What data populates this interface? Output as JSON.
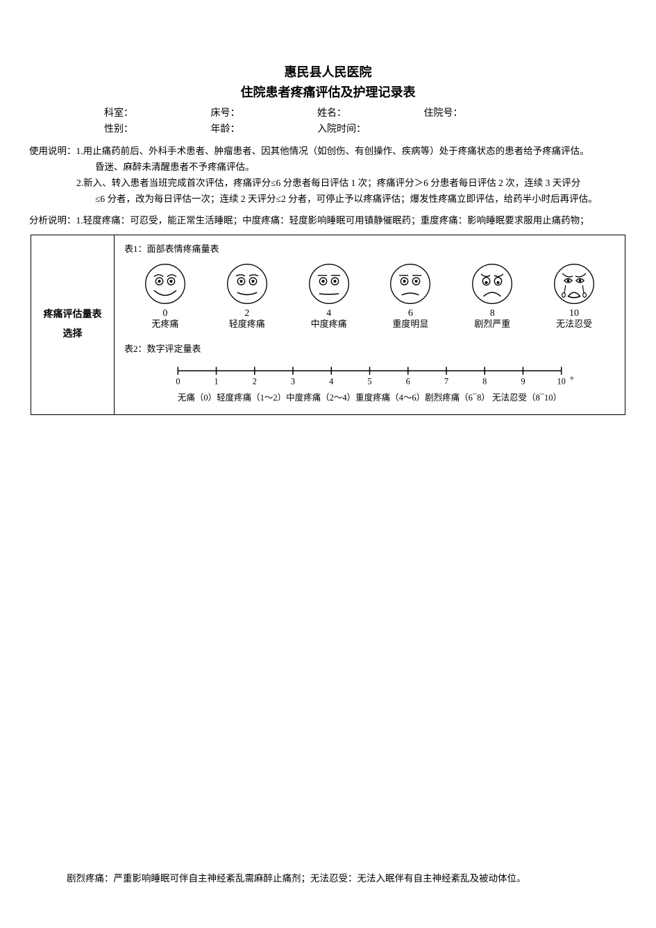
{
  "header": {
    "hospital": "惠民县人民医院",
    "form_title": "住院患者疼痛评估及护理记录表"
  },
  "patient_info": {
    "row1": {
      "dept_label": "科室：",
      "bed_label": "床号：",
      "name_label": "姓名：",
      "inpatient_no_label": "住院号："
    },
    "row2": {
      "sex_label": "性别：",
      "age_label": "年龄：",
      "admit_time_label": "入院时间："
    }
  },
  "usage": {
    "prefix": "使用说明：",
    "item1": "1.用止痛药前后、外科手术患者、肿瘤患者、因其他情况（如创伤、有创操作、疾病等）处于疼痛状态的患者给予疼痛评估。",
    "item1b": "昏迷、麻醉未清醒患者不予疼痛评估。",
    "item2": "2.新入、转入患者当班完成首次评估，疼痛评分≤6 分患者每日评估 1 次；疼痛评分＞6 分患者每日评估 2 次，连续 3 天评分",
    "item2b": "≤6 分者，改为每日评估一次；连续 2 天评分≤2 分者，可停止予以疼痛评估；爆发性疼痛立即评估，给药半小时后再评估。"
  },
  "analysis": {
    "prefix": "分析说明：",
    "item1": "1.轻度疼痛：可忍受，能正常生活睡眠；中度疼痛：轻度影响睡眠可用镇静催眠药；重度疼痛：影响睡眠要求服用止痛药物；"
  },
  "scale_box": {
    "side_label_1": "疼痛评估量表",
    "side_label_2": "选择",
    "table1_label": "表1：面部表情疼痛量表",
    "table2_label": "表2：数字评定量表",
    "faces": [
      {
        "num": "0",
        "label": "无疼痛"
      },
      {
        "num": "2",
        "label": "轻度疼痛"
      },
      {
        "num": "4",
        "label": "中度疼痛"
      },
      {
        "num": "6",
        "label": "重度明显"
      },
      {
        "num": "8",
        "label": "剧烈严重"
      },
      {
        "num": "10",
        "label": "无法忍受"
      }
    ],
    "ruler": {
      "ticks": [
        "0",
        "1",
        "2",
        "3",
        "4",
        "5",
        "6",
        "7",
        "8",
        "9",
        "10"
      ],
      "end_arrow": "+",
      "caption": "无痛（0）轻度疼痛（1～2）中度疼痛（2～4）重度疼痛（4～6）剧烈疼痛（6¯8）  无法忍受（8¯10）"
    }
  },
  "bottom_note": "剧烈疼痛：严重影响睡眠可伴自主神经紊乱需麻醉止痛剂；无法忍受：无法入眠伴有自主神经紊乱及被动体位。",
  "style": {
    "stroke": "#000000",
    "bg": "#ffffff",
    "face_stroke_width": 1.4
  }
}
